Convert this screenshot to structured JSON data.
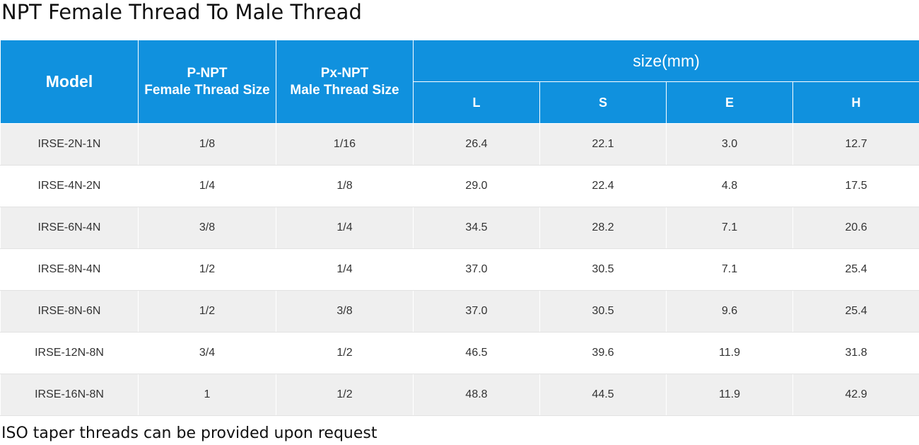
{
  "title": "NPT Female Thread To Male Thread",
  "table": {
    "headers": {
      "model": "Model",
      "p_npt": {
        "line1": "P-NPT",
        "line2": "Female Thread Size"
      },
      "px_npt": {
        "line1": "Px-NPT",
        "line2": "Male Thread Size"
      },
      "size_group": "size(mm)",
      "l": "L",
      "s": "S",
      "e": "E",
      "h": "H"
    },
    "rows": [
      [
        "IRSE-2N-1N",
        "1/8",
        "1/16",
        "26.4",
        "22.1",
        "3.0",
        "12.7"
      ],
      [
        "IRSE-4N-2N",
        "1/4",
        "1/8",
        "29.0",
        "22.4",
        "4.8",
        "17.5"
      ],
      [
        "IRSE-6N-4N",
        "3/8",
        "1/4",
        "34.5",
        "28.2",
        "7.1",
        "20.6"
      ],
      [
        "IRSE-8N-4N",
        "1/2",
        "1/4",
        "37.0",
        "30.5",
        "7.1",
        "25.4"
      ],
      [
        "IRSE-8N-6N",
        "1/2",
        "3/8",
        "37.0",
        "30.5",
        "9.6",
        "25.4"
      ],
      [
        "IRSE-12N-8N",
        "3/4",
        "1/2",
        "46.5",
        "39.6",
        "11.9",
        "31.8"
      ],
      [
        "IRSE-16N-8N",
        "1",
        "1/2",
        "48.8",
        "44.5",
        "11.9",
        "42.9"
      ]
    ]
  },
  "footnote": "ISO taper threads can be provided upon request",
  "colors": {
    "header_bg": "#1091de",
    "row_alt_bg": "#efefef"
  }
}
